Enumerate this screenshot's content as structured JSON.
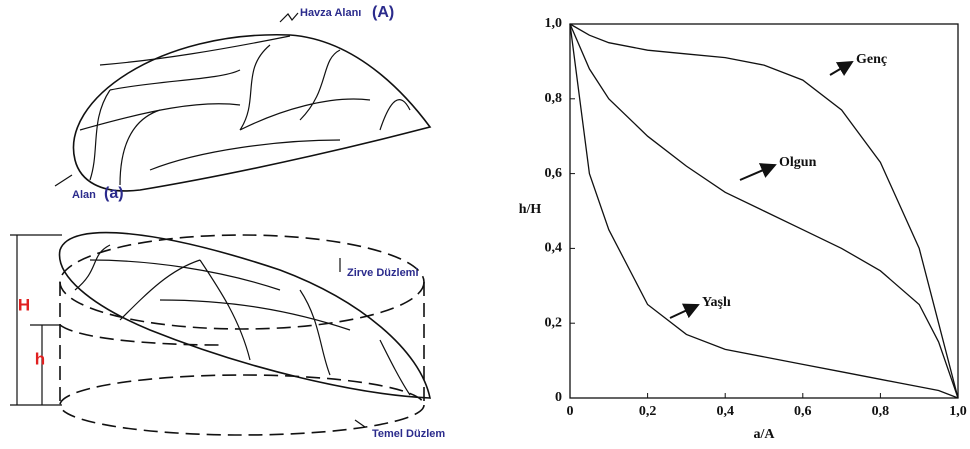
{
  "diagram": {
    "labels": {
      "basin_area": "Havza Alanı",
      "basin_area_symbol": "(A)",
      "area": "Alan",
      "area_symbol": "(a)",
      "total_height": "H",
      "height": "h",
      "top_plane": "Zirve Düzlemi",
      "base_plane": "Temel Düzlem"
    }
  },
  "chart_data": {
    "type": "line",
    "x_label": "a/A",
    "y_label": "h/H",
    "x": [
      0,
      0.05,
      0.1,
      0.2,
      0.3,
      0.4,
      0.5,
      0.6,
      0.7,
      0.8,
      0.9,
      0.95,
      1
    ],
    "series": [
      {
        "name": "Genç",
        "color": "#111111",
        "values": [
          1,
          0.97,
          0.95,
          0.93,
          0.92,
          0.91,
          0.89,
          0.85,
          0.77,
          0.63,
          0.4,
          0.2,
          0
        ]
      },
      {
        "name": "Olgun",
        "color": "#111111",
        "values": [
          1,
          0.88,
          0.8,
          0.7,
          0.62,
          0.55,
          0.5,
          0.45,
          0.4,
          0.34,
          0.25,
          0.15,
          0
        ]
      },
      {
        "name": "Yaşlı",
        "color": "#111111",
        "values": [
          1,
          0.6,
          0.45,
          0.25,
          0.17,
          0.13,
          0.11,
          0.09,
          0.07,
          0.05,
          0.03,
          0.02,
          0
        ]
      }
    ],
    "xlim": [
      0,
      1
    ],
    "ylim": [
      0,
      1
    ],
    "xticks": [
      0,
      {
        "value": 0.2,
        "label": "0,2"
      },
      {
        "value": 0.4,
        "label": "0,4"
      },
      {
        "value": 0.6,
        "label": "0,6"
      },
      {
        "value": 0.8,
        "label": "0,8"
      },
      {
        "value": 1,
        "label": "1,0"
      }
    ],
    "yticks": [
      0,
      {
        "value": 0.2,
        "label": "0,2"
      },
      {
        "value": 0.4,
        "label": "0,4"
      },
      {
        "value": 0.6,
        "label": "0,6"
      },
      {
        "value": 0.8,
        "label": "0,8"
      },
      {
        "value": 1,
        "label": "1,0"
      }
    ],
    "grid": false
  }
}
